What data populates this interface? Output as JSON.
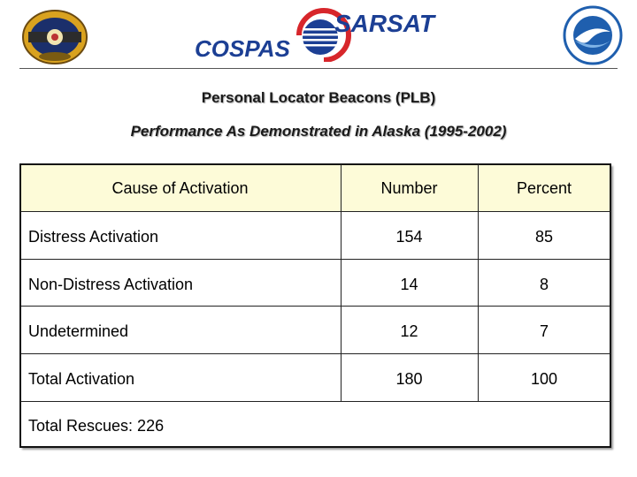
{
  "header": {
    "logo_left_name": "cospas-sarsat-emblem",
    "logo_center": {
      "sarsat": "SARSAT",
      "cospas": "COSPAS"
    },
    "logo_right_name": "noaa-logo",
    "colors": {
      "cospas_blue": "#1c3f94",
      "sarsat_red": "#d7262b",
      "noaa_blue": "#1f5fae"
    }
  },
  "titles": {
    "main": "Personal Locator Beacons (PLB)",
    "subtitle": "Performance As Demonstrated in Alaska  (1995-2002)"
  },
  "table": {
    "header_bg": "#fdfbd8",
    "columns": [
      "Cause of Activation",
      "Number",
      "Percent"
    ],
    "rows": [
      [
        "Distress Activation",
        "154",
        "85"
      ],
      [
        "Non-Distress Activation",
        "14",
        "8"
      ],
      [
        "Undetermined",
        "12",
        "7"
      ],
      [
        "Total Activation",
        "180",
        "100"
      ]
    ],
    "footer": "Total Rescues: 226"
  }
}
